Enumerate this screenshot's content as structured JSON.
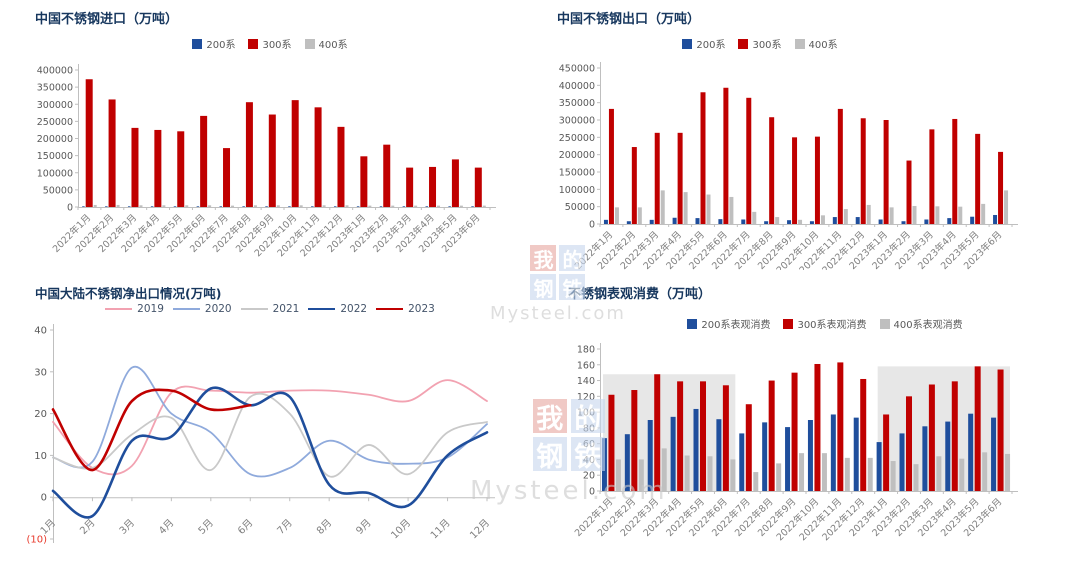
{
  "colors": {
    "title": "#17375e",
    "axis_line": "#bfbfbf",
    "tick_text": "#595959",
    "xlabel_text": "#7f7f7f",
    "negative_tick": "#e8392b",
    "band_fill": "#e7e7e7",
    "series_blue": "#1f4e9c",
    "series_red": "#c00000",
    "series_gray": "#bfbfbf"
  },
  "watermark": {
    "chars": [
      "我",
      "的",
      "钢",
      "铁"
    ],
    "site": "Mysteel.com",
    "char_bg_first": "#e7a6a0",
    "char_bg_rest": "#c7d7ee"
  },
  "chart_data": [
    {
      "type": "bar",
      "title": "中国不锈钢进口（万吨）",
      "categories": [
        "2022年1月",
        "2022年2月",
        "2022年3月",
        "2022年4月",
        "2022年5月",
        "2022年6月",
        "2022年7月",
        "2022年8月",
        "2022年9月",
        "2022年10月",
        "2022年11月",
        "2022年12月",
        "2023年1月",
        "2023年2月",
        "2023年3月",
        "2023年4月",
        "2023年5月",
        "2023年6月"
      ],
      "series": [
        {
          "name": "200系",
          "color": "#1f4e9c",
          "values": [
            2000,
            2000,
            2000,
            2000,
            2000,
            2000,
            2000,
            2000,
            2000,
            2000,
            2000,
            2000,
            2000,
            2000,
            2000,
            2000,
            2000,
            2000
          ]
        },
        {
          "name": "300系",
          "color": "#c00000",
          "values": [
            373000,
            314000,
            231000,
            225000,
            221000,
            266000,
            172000,
            306000,
            270000,
            312000,
            291000,
            234000,
            148000,
            182000,
            115000,
            117000,
            139000,
            115000
          ]
        },
        {
          "name": "400系",
          "color": "#bfbfbf",
          "values": [
            6000,
            6000,
            5000,
            5000,
            5000,
            5000,
            4000,
            5000,
            5000,
            5000,
            5000,
            5000,
            4000,
            4000,
            4000,
            4000,
            4000,
            4000
          ]
        }
      ],
      "ylim": [
        0,
        400000
      ],
      "ytick": 50000,
      "grid": false,
      "legend_position": "top"
    },
    {
      "type": "bar",
      "title": "中国不锈钢出口（万吨）",
      "categories": [
        "2022年1月",
        "2022年2月",
        "2022年3月",
        "2022年4月",
        "2022年5月",
        "2022年6月",
        "2022年7月",
        "2022年8月",
        "2022年9月",
        "2022年10月",
        "2022年11月",
        "2022年12月",
        "2023年1月",
        "2023年2月",
        "2023年3月",
        "2023年4月",
        "2023年5月",
        "2023年6月"
      ],
      "series": [
        {
          "name": "200系",
          "color": "#1f4e9c",
          "values": [
            12000,
            8000,
            12000,
            18000,
            17000,
            14000,
            13000,
            8000,
            11000,
            8000,
            20000,
            20000,
            13000,
            8000,
            13000,
            17000,
            21000,
            26000
          ]
        },
        {
          "name": "300系",
          "color": "#c00000",
          "values": [
            332000,
            222000,
            263000,
            263000,
            380000,
            393000,
            364000,
            308000,
            250000,
            252000,
            332000,
            305000,
            300000,
            183000,
            273000,
            303000,
            260000,
            208000
          ]
        },
        {
          "name": "400系",
          "color": "#bfbfbf",
          "values": [
            48000,
            48000,
            97000,
            92000,
            85000,
            78000,
            35000,
            20000,
            12000,
            25000,
            43000,
            55000,
            48000,
            52000,
            51000,
            50000,
            58000,
            97000
          ]
        }
      ],
      "ylim": [
        0,
        450000
      ],
      "ytick": 50000,
      "grid": false,
      "legend_position": "top"
    },
    {
      "type": "line",
      "title": "中国大陆不锈钢净出口情况(万吨)",
      "x": [
        "1月",
        "2月",
        "3月",
        "4月",
        "5月",
        "6月",
        "7月",
        "8月",
        "9月",
        "10月",
        "11月",
        "12月"
      ],
      "series": [
        {
          "name": "2019",
          "color": "#f2a2b1",
          "width": 1.8,
          "values": [
            18,
            7,
            7.5,
            25,
            25.5,
            25,
            25.5,
            25.5,
            24.5,
            23,
            28,
            23
          ]
        },
        {
          "name": "2020",
          "color": "#8faadc",
          "width": 1.8,
          "values": [
            9.5,
            8.5,
            31,
            20,
            15.5,
            5.5,
            7,
            13.5,
            9,
            8,
            9.5,
            17.5
          ]
        },
        {
          "name": "2021",
          "color": "#c9c9c9",
          "width": 1.8,
          "values": [
            9.5,
            7,
            15,
            19,
            6.5,
            24,
            20,
            5,
            12.5,
            5.5,
            15.5,
            18
          ]
        },
        {
          "name": "2022",
          "color": "#1f4e9c",
          "width": 2.6,
          "values": [
            1.5,
            -4.5,
            13.5,
            14.5,
            26,
            22,
            24,
            3,
            1,
            -2,
            10,
            15.5
          ]
        },
        {
          "name": "2023",
          "color": "#c00000",
          "width": 2.6,
          "values": [
            21,
            6.5,
            23,
            25.5,
            21,
            22
          ]
        }
      ],
      "ylim": [
        -10,
        40
      ],
      "ytick": 10,
      "negative_label": "(10)",
      "grid": false,
      "legend_position": "top"
    },
    {
      "type": "bar",
      "title": "不锈钢表观消费（万吨）",
      "categories": [
        "2022年1月",
        "2022年2月",
        "2022年3月",
        "2022年4月",
        "2022年5月",
        "2022年6月",
        "2022年7月",
        "2022年8月",
        "2022年9月",
        "2022年10月",
        "2022年11月",
        "2022年12月",
        "2023年1月",
        "2023年2月",
        "2023年3月",
        "2023年4月",
        "2023年5月",
        "2023年6月"
      ],
      "series": [
        {
          "name": "200系表观消费",
          "color": "#1f4e9c",
          "values": [
            67,
            72,
            90,
            94,
            104,
            91,
            73,
            87,
            81,
            90,
            97,
            93,
            62,
            73,
            82,
            88,
            98,
            93
          ]
        },
        {
          "name": "300系表观消费",
          "color": "#c00000",
          "values": [
            122,
            128,
            148,
            139,
            139,
            134,
            110,
            140,
            150,
            161,
            163,
            142,
            97,
            120,
            135,
            139,
            158,
            154
          ]
        },
        {
          "name": "400系表观消费",
          "color": "#bfbfbf",
          "values": [
            40,
            40,
            54,
            45,
            44,
            40,
            24,
            35,
            48,
            48,
            42,
            42,
            38,
            34,
            44,
            41,
            49,
            47
          ]
        }
      ],
      "bands": [
        {
          "from": 1,
          "to": 6,
          "top": 148
        },
        {
          "from": 13,
          "to": 18,
          "top": 158
        }
      ],
      "ylim": [
        0,
        180
      ],
      "ytick": 20,
      "grid": false,
      "legend_position": "top"
    }
  ]
}
